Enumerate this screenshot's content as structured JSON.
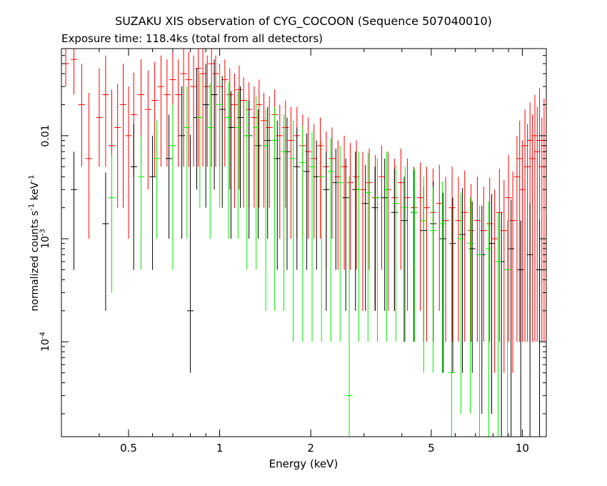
{
  "chart_data": {
    "type": "scatter",
    "title": "SUZAKU XIS observation of CYG_COCOON (Sequence 507040010)",
    "subtitle": "Exposure time: 118.4ks (total from all detectors)",
    "xlabel": "Energy (keV)",
    "ylabel": "normalized counts s-1 keV-1",
    "xscale": "log",
    "yscale": "log",
    "xlim": [
      0.3,
      12
    ],
    "ylim": [
      1.2e-05,
      0.07
    ],
    "grid": false,
    "x_ticks": [
      {
        "value": 0.5,
        "label": "0.5"
      },
      {
        "value": 1,
        "label": "1"
      },
      {
        "value": 2,
        "label": "2"
      },
      {
        "value": 5,
        "label": "5"
      },
      {
        "value": 10,
        "label": "10"
      }
    ],
    "y_ticks": [
      {
        "value": 0.01,
        "label": "0.01"
      },
      {
        "value": 0.001,
        "label": "10-3"
      },
      {
        "value": 0.0001,
        "label": "10-4"
      }
    ],
    "series": [
      {
        "color": "#ff0000",
        "points": [
          [
            0.31,
            0.05,
            0.02,
            0.04
          ],
          [
            0.33,
            0.055,
            0.03,
            0.045
          ],
          [
            0.35,
            0.02,
            0.015,
            0.03
          ],
          [
            0.37,
            0.006,
            0.005,
            0.02
          ],
          [
            0.4,
            0.015,
            0.01,
            0.03
          ],
          [
            0.42,
            0.025,
            0.02,
            0.035
          ],
          [
            0.44,
            0.008,
            0.007,
            0.02
          ],
          [
            0.46,
            0.012,
            0.01,
            0.02
          ],
          [
            0.48,
            0.02,
            0.018,
            0.03
          ],
          [
            0.5,
            0.01,
            0.009,
            0.02
          ],
          [
            0.52,
            0.016,
            0.012,
            0.025
          ],
          [
            0.55,
            0.025,
            0.02,
            0.03
          ],
          [
            0.58,
            0.018,
            0.015,
            0.025
          ],
          [
            0.61,
            0.022,
            0.018,
            0.03
          ],
          [
            0.64,
            0.03,
            0.025,
            0.03
          ],
          [
            0.67,
            0.025,
            0.02,
            0.03
          ],
          [
            0.7,
            0.035,
            0.03,
            0.03
          ],
          [
            0.73,
            0.025,
            0.02,
            0.03
          ],
          [
            0.76,
            0.04,
            0.035,
            0.03
          ],
          [
            0.79,
            0.035,
            0.03,
            0.03
          ],
          [
            0.82,
            0.03,
            0.025,
            0.03
          ],
          [
            0.85,
            0.045,
            0.04,
            0.03
          ],
          [
            0.88,
            0.04,
            0.035,
            0.03
          ],
          [
            0.91,
            0.03,
            0.025,
            0.03
          ],
          [
            0.94,
            0.05,
            0.045,
            0.02
          ],
          [
            0.97,
            0.04,
            0.035,
            0.02
          ],
          [
            1.0,
            0.03,
            0.025,
            0.02
          ],
          [
            1.04,
            0.035,
            0.03,
            0.02
          ],
          [
            1.08,
            0.025,
            0.022,
            0.02
          ],
          [
            1.12,
            0.02,
            0.018,
            0.02
          ],
          [
            1.16,
            0.028,
            0.025,
            0.02
          ],
          [
            1.2,
            0.022,
            0.02,
            0.015
          ],
          [
            1.25,
            0.018,
            0.016,
            0.015
          ],
          [
            1.3,
            0.015,
            0.013,
            0.015
          ],
          [
            1.35,
            0.02,
            0.018,
            0.015
          ],
          [
            1.4,
            0.014,
            0.012,
            0.012
          ],
          [
            1.46,
            0.012,
            0.01,
            0.012
          ],
          [
            1.52,
            0.016,
            0.014,
            0.012
          ],
          [
            1.58,
            0.01,
            0.009,
            0.01
          ],
          [
            1.65,
            0.012,
            0.01,
            0.01
          ],
          [
            1.72,
            0.009,
            0.008,
            0.01
          ],
          [
            1.8,
            0.01,
            0.009,
            0.009
          ],
          [
            1.88,
            0.008,
            0.007,
            0.008
          ],
          [
            1.96,
            0.007,
            0.006,
            0.008
          ],
          [
            2.05,
            0.006,
            0.005,
            0.007
          ],
          [
            2.15,
            0.008,
            0.007,
            0.007
          ],
          [
            2.25,
            0.005,
            0.0045,
            0.006
          ],
          [
            2.35,
            0.006,
            0.005,
            0.006
          ],
          [
            2.46,
            0.004,
            0.0035,
            0.005
          ],
          [
            2.58,
            0.005,
            0.0045,
            0.005
          ],
          [
            2.7,
            0.0035,
            0.003,
            0.005
          ],
          [
            2.83,
            0.004,
            0.0035,
            0.005
          ],
          [
            2.97,
            0.003,
            0.0028,
            0.004
          ],
          [
            3.12,
            0.0035,
            0.003,
            0.004
          ],
          [
            3.27,
            0.0025,
            0.0023,
            0.004
          ],
          [
            3.43,
            0.004,
            0.0035,
            0.004
          ],
          [
            3.6,
            0.003,
            0.0028,
            0.004
          ],
          [
            3.78,
            0.0025,
            0.0023,
            0.0035
          ],
          [
            3.97,
            0.0035,
            0.003,
            0.004
          ],
          [
            4.17,
            0.0025,
            0.0023,
            0.0035
          ],
          [
            4.38,
            0.002,
            0.0019,
            0.003
          ],
          [
            4.6,
            0.0025,
            0.0023,
            0.003
          ],
          [
            4.83,
            0.002,
            0.0019,
            0.003
          ],
          [
            5.07,
            0.0018,
            0.0017,
            0.003
          ],
          [
            5.32,
            0.0022,
            0.002,
            0.003
          ],
          [
            5.58,
            0.0015,
            0.0014,
            0.0025
          ],
          [
            5.86,
            0.002,
            0.0019,
            0.003
          ],
          [
            6.15,
            0.0015,
            0.0014,
            0.0025
          ],
          [
            6.45,
            0.0018,
            0.0017,
            0.0028
          ],
          [
            6.77,
            0.0012,
            0.0011,
            0.0022
          ],
          [
            7.1,
            0.0015,
            0.0014,
            0.0025
          ],
          [
            7.45,
            0.0012,
            0.0011,
            0.002
          ],
          [
            7.8,
            0.0014,
            0.0013,
            0.0025
          ],
          [
            8.1,
            0.001,
            0.00095,
            0.002
          ],
          [
            8.4,
            0.0018,
            0.0017,
            0.003
          ],
          [
            8.7,
            0.0012,
            0.00115,
            0.0025
          ],
          [
            9.0,
            0.0025,
            0.0024,
            0.004
          ],
          [
            9.3,
            0.0015,
            0.00145,
            0.003
          ],
          [
            9.6,
            0.004,
            0.0039,
            0.006
          ],
          [
            9.8,
            0.006,
            0.0059,
            0.008
          ],
          [
            10.0,
            0.003,
            0.0029,
            0.006
          ],
          [
            10.2,
            0.008,
            0.0079,
            0.01
          ],
          [
            10.4,
            0.005,
            0.0049,
            0.008
          ],
          [
            10.6,
            0.009,
            0.0089,
            0.012
          ],
          [
            10.8,
            0.006,
            0.0059,
            0.01
          ],
          [
            11.0,
            0.01,
            0.0099,
            0.015
          ],
          [
            11.2,
            0.007,
            0.0069,
            0.012
          ],
          [
            11.4,
            0.009,
            0.0089,
            0.02
          ],
          [
            11.6,
            0.005,
            0.0049,
            0.01
          ],
          [
            11.8,
            0.008,
            0.0079,
            0.015
          ]
        ]
      },
      {
        "color": "#000000",
        "points": [
          [
            0.33,
            0.003,
            0.0025,
            0.004
          ],
          [
            0.42,
            0.0014,
            0.0012,
            0.003
          ],
          [
            0.52,
            0.005,
            0.0045,
            0.008
          ],
          [
            0.6,
            0.004,
            0.0035,
            0.006
          ],
          [
            0.68,
            0.006,
            0.005,
            0.01
          ],
          [
            0.75,
            0.01,
            0.009,
            0.02
          ],
          [
            0.8,
            0.0002,
            0.00015,
            0.01
          ],
          [
            0.84,
            0.015,
            0.012,
            0.03
          ],
          [
            0.9,
            0.02,
            0.018,
            0.03
          ],
          [
            0.96,
            0.025,
            0.022,
            0.03
          ],
          [
            1.02,
            0.018,
            0.016,
            0.02
          ],
          [
            1.09,
            0.012,
            0.011,
            0.015
          ],
          [
            1.17,
            0.015,
            0.013,
            0.015
          ],
          [
            1.25,
            0.01,
            0.009,
            0.012
          ],
          [
            1.34,
            0.008,
            0.007,
            0.01
          ],
          [
            1.44,
            0.009,
            0.008,
            0.01
          ],
          [
            1.55,
            0.006,
            0.0055,
            0.008
          ],
          [
            1.67,
            0.007,
            0.0065,
            0.008
          ],
          [
            1.8,
            0.005,
            0.0045,
            0.007
          ],
          [
            1.94,
            0.0045,
            0.004,
            0.006
          ],
          [
            2.09,
            0.004,
            0.0035,
            0.005
          ],
          [
            2.25,
            0.003,
            0.0028,
            0.004
          ],
          [
            2.42,
            0.0035,
            0.003,
            0.004
          ],
          [
            2.61,
            0.0025,
            0.0023,
            0.0035
          ],
          [
            2.81,
            0.003,
            0.0028,
            0.004
          ],
          [
            3.03,
            0.0022,
            0.002,
            0.003
          ],
          [
            3.26,
            0.002,
            0.0018,
            0.003
          ],
          [
            3.51,
            0.0025,
            0.0023,
            0.0035
          ],
          [
            3.78,
            0.0018,
            0.0016,
            0.003
          ],
          [
            4.07,
            0.0015,
            0.0014,
            0.0025
          ],
          [
            4.38,
            0.0018,
            0.0017,
            0.0028
          ],
          [
            4.72,
            0.0012,
            0.0011,
            0.002
          ],
          [
            5.08,
            0.0014,
            0.0013,
            0.0022
          ],
          [
            5.47,
            0.001,
            0.00095,
            0.0018
          ],
          [
            5.89,
            0.0009,
            0.00085,
            0.0016
          ],
          [
            6.34,
            0.0011,
            0.00105,
            0.002
          ],
          [
            6.83,
            0.0008,
            0.00075,
            0.0015
          ],
          [
            7.35,
            0.0007,
            0.00068,
            0.0014
          ],
          [
            7.92,
            0.0009,
            0.00088,
            0.0018
          ],
          [
            8.53,
            0.0006,
            0.00059,
            0.0012
          ],
          [
            9.18,
            0.0008,
            0.00079,
            0.0016
          ],
          [
            9.88,
            0.0005,
            0.00049,
            0.001
          ],
          [
            10.6,
            0.0007,
            0.00069,
            0.0015
          ],
          [
            11.4,
            0.0005,
            0.00049,
            0.001
          ]
        ]
      },
      {
        "color": "#00ee00",
        "points": [
          [
            0.44,
            0.0025,
            0.0022,
            0.004
          ],
          [
            0.55,
            0.004,
            0.0035,
            0.006
          ],
          [
            0.62,
            0.006,
            0.005,
            0.008
          ],
          [
            0.7,
            0.008,
            0.0075,
            0.012
          ],
          [
            0.78,
            0.012,
            0.011,
            0.018
          ],
          [
            0.86,
            0.015,
            0.013,
            0.025
          ],
          [
            0.93,
            0.012,
            0.011,
            0.02
          ],
          [
            1.0,
            0.02,
            0.018,
            0.025
          ],
          [
            1.07,
            0.015,
            0.014,
            0.018
          ],
          [
            1.15,
            0.012,
            0.011,
            0.015
          ],
          [
            1.23,
            0.01,
            0.0095,
            0.012
          ],
          [
            1.32,
            0.012,
            0.0115,
            0.012
          ],
          [
            1.42,
            0.008,
            0.0078,
            0.01
          ],
          [
            1.52,
            0.009,
            0.0088,
            0.01
          ],
          [
            1.63,
            0.007,
            0.0068,
            0.009
          ],
          [
            1.75,
            0.006,
            0.0059,
            0.008
          ],
          [
            1.88,
            0.0055,
            0.0054,
            0.007
          ],
          [
            2.02,
            0.005,
            0.0049,
            0.006
          ],
          [
            2.17,
            0.004,
            0.0039,
            0.005
          ],
          [
            2.33,
            0.0045,
            0.0044,
            0.005
          ],
          [
            2.5,
            0.0035,
            0.0034,
            0.0045
          ],
          [
            2.68,
            3e-05,
            2e-05,
            0.004
          ],
          [
            2.88,
            0.003,
            0.0029,
            0.004
          ],
          [
            3.09,
            0.0028,
            0.0027,
            0.004
          ],
          [
            3.32,
            0.0025,
            0.0024,
            0.0035
          ],
          [
            3.56,
            0.003,
            0.0029,
            0.004
          ],
          [
            3.82,
            0.0022,
            0.0021,
            0.003
          ],
          [
            4.1,
            0.002,
            0.0019,
            0.003
          ],
          [
            4.4,
            0.0018,
            0.0017,
            0.003
          ],
          [
            4.72,
            0.0015,
            0.00145,
            0.0025
          ],
          [
            5.07,
            0.0012,
            0.00115,
            0.002
          ],
          [
            5.44,
            0.0014,
            0.00135,
            0.0022
          ],
          [
            5.84,
            5e-05,
            4e-05,
            0.002
          ],
          [
            6.27,
            0.001,
            0.00098,
            0.0018
          ],
          [
            6.73,
            0.0009,
            0.00088,
            0.0016
          ],
          [
            7.22,
            0.0007,
            0.00069,
            0.0014
          ],
          [
            7.75,
            0.0008,
            0.00079,
            0.0015
          ],
          [
            8.32,
            0.0006,
            0.00059,
            0.0012
          ],
          [
            8.93,
            0.0005,
            0.00049,
            0.001
          ]
        ]
      }
    ]
  }
}
